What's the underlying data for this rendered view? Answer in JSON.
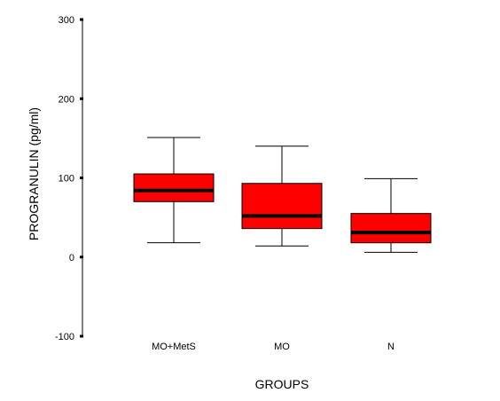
{
  "chart_data": {
    "type": "box",
    "xlabel": "GROUPS",
    "ylabel": "PROGRANULIN (pg/ml)",
    "ylim": [
      -100,
      300
    ],
    "yticks": [
      -100,
      0,
      100,
      200,
      300
    ],
    "grid": false,
    "legend": "none",
    "box_color": "#ff0000",
    "median_color": "#000000",
    "categories": [
      "MO+MetS",
      "MO",
      "N"
    ],
    "boxes": [
      {
        "label": "MO+MetS",
        "whisker_low": 18,
        "q1": 70,
        "median": 84,
        "q3": 105,
        "whisker_high": 151
      },
      {
        "label": "MO",
        "whisker_low": 14,
        "q1": 36,
        "median": 52,
        "q3": 93,
        "whisker_high": 140
      },
      {
        "label": "N",
        "whisker_low": 6,
        "q1": 18,
        "median": 31,
        "q3": 55,
        "whisker_high": 99
      }
    ]
  }
}
